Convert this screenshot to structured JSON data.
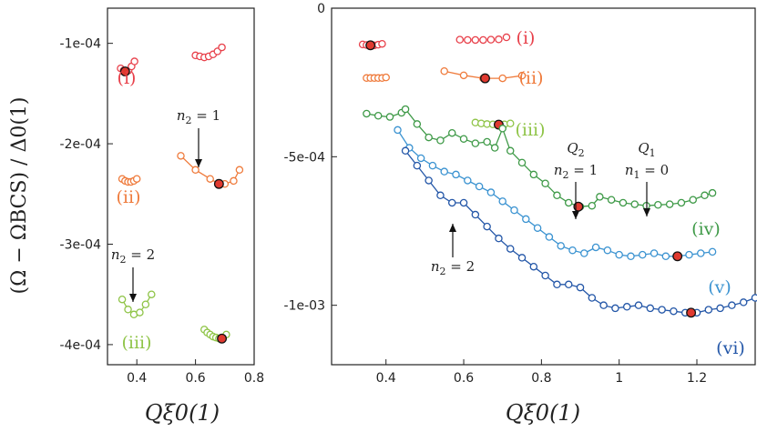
{
  "colors": {
    "i": "#e8414b",
    "ii": "#ef7b3c",
    "iii": "#8fc447",
    "iv": "#3f9a48",
    "v": "#3b93d1",
    "vi": "#2457a8",
    "marker_fill": "#e03a30"
  },
  "chart_data": [
    {
      "type": "scatter",
      "panel": "left",
      "xlabel": "Qξ0(1)",
      "ylabel": "(Ω − ΩBCS) / Δ0(1)",
      "xlim": [
        0.3,
        0.8
      ],
      "ylim": [
        -0.00042,
        -6.5e-05
      ],
      "x_ticks": [
        0.4,
        0.6,
        0.8
      ],
      "x_tick_labels": [
        "0.4",
        "0.6",
        "0.8"
      ],
      "y_ticks": [
        -0.0001,
        -0.0002,
        -0.0003,
        -0.0004
      ],
      "y_tick_labels": [
        "-1e-04",
        "-2e-04",
        "-3e-04",
        "-4e-04"
      ],
      "series": [
        {
          "key": "i",
          "label": "(i)",
          "connected": false,
          "points": [
            [
              0.345,
              -0.000125
            ],
            [
              0.355,
              -0.000127
            ],
            [
              0.362,
              -0.000128
            ],
            [
              0.372,
              -0.000127
            ],
            [
              0.382,
              -0.000123
            ],
            [
              0.392,
              -0.000118
            ],
            [
              0.6,
              -0.000112
            ],
            [
              0.615,
              -0.000113
            ],
            [
              0.63,
              -0.000114
            ],
            [
              0.645,
              -0.000113
            ],
            [
              0.66,
              -0.000111
            ],
            [
              0.675,
              -0.000108
            ],
            [
              0.69,
              -0.000104
            ]
          ],
          "highlight": [
            [
              0.36,
              -0.000128
            ]
          ]
        },
        {
          "key": "ii",
          "label": "(ii)",
          "connected": false,
          "points": [
            [
              0.35,
              -0.000235
            ],
            [
              0.36,
              -0.000237
            ],
            [
              0.37,
              -0.000238
            ],
            [
              0.38,
              -0.000238
            ],
            [
              0.39,
              -0.000237
            ],
            [
              0.4,
              -0.000235
            ]
          ],
          "highlight": []
        },
        {
          "key": "ii",
          "label": "",
          "connected": true,
          "points": [
            [
              0.55,
              -0.000212
            ],
            [
              0.6,
              -0.000226
            ],
            [
              0.65,
              -0.000235
            ],
            [
              0.68,
              -0.00024
            ],
            [
              0.7,
              -0.00024
            ],
            [
              0.73,
              -0.000237
            ],
            [
              0.75,
              -0.000226
            ]
          ],
          "highlight": [
            [
              0.68,
              -0.00024
            ]
          ]
        },
        {
          "key": "iii",
          "label": "(iii)",
          "connected": true,
          "points": [
            [
              0.35,
              -0.000355
            ],
            [
              0.37,
              -0.000365
            ],
            [
              0.39,
              -0.00037
            ],
            [
              0.41,
              -0.000368
            ],
            [
              0.43,
              -0.00036
            ],
            [
              0.45,
              -0.00035
            ]
          ],
          "highlight": []
        },
        {
          "key": "iii",
          "label": "",
          "connected": false,
          "points": [
            [
              0.63,
              -0.000385
            ],
            [
              0.64,
              -0.000388
            ],
            [
              0.65,
              -0.00039
            ],
            [
              0.66,
              -0.000392
            ],
            [
              0.67,
              -0.000393
            ],
            [
              0.68,
              -0.000394
            ],
            [
              0.69,
              -0.000393
            ],
            [
              0.705,
              -0.00039
            ]
          ],
          "highlight": [
            [
              0.69,
              -0.000394
            ]
          ]
        }
      ],
      "annotations": [
        {
          "text_parts": [
            "n",
            "2",
            " = 1"
          ],
          "target": [
            0.68,
            -0.00024
          ]
        },
        {
          "text_parts": [
            "n",
            "2",
            " = 2"
          ],
          "target": [
            0.39,
            -0.00037
          ]
        }
      ]
    },
    {
      "type": "line",
      "panel": "right",
      "xlabel": "Qξ0(1)",
      "xlim": [
        0.26,
        1.35
      ],
      "ylim": [
        -0.0012,
        0
      ],
      "x_ticks": [
        0.4,
        0.6,
        0.8,
        1.0,
        1.2
      ],
      "x_tick_labels": [
        "0.4",
        "0.6",
        "0.8",
        "1",
        "1.2"
      ],
      "y_ticks": [
        0,
        -0.0005,
        -0.001
      ],
      "y_tick_labels": [
        "0",
        "-5e-04",
        "-1e-03"
      ],
      "series": [
        {
          "key": "i",
          "label": "(i)",
          "connected": false,
          "points": [
            [
              0.34,
              -0.000122
            ],
            [
              0.35,
              -0.000124
            ],
            [
              0.36,
              -0.000125
            ],
            [
              0.37,
              -0.000125
            ],
            [
              0.38,
              -0.000123
            ],
            [
              0.39,
              -0.00012
            ],
            [
              0.59,
              -0.000106
            ],
            [
              0.61,
              -0.000107
            ],
            [
              0.63,
              -0.000107
            ],
            [
              0.65,
              -0.000107
            ],
            [
              0.67,
              -0.000106
            ],
            [
              0.69,
              -0.000105
            ],
            [
              0.71,
              -9.8e-05
            ]
          ],
          "highlight": [
            [
              0.36,
              -0.000125
            ]
          ]
        },
        {
          "key": "ii",
          "label": "(ii)",
          "connected": false,
          "points": [
            [
              0.35,
              -0.000235
            ],
            [
              0.36,
              -0.000235
            ],
            [
              0.37,
              -0.000235
            ],
            [
              0.38,
              -0.000235
            ],
            [
              0.39,
              -0.000235
            ],
            [
              0.4,
              -0.000233
            ]
          ],
          "highlight": []
        },
        {
          "key": "ii",
          "label": "",
          "connected": true,
          "points": [
            [
              0.55,
              -0.000212
            ],
            [
              0.6,
              -0.000226
            ],
            [
              0.65,
              -0.000236
            ],
            [
              0.7,
              -0.000236
            ],
            [
              0.75,
              -0.000227
            ]
          ],
          "highlight": [
            [
              0.655,
              -0.000236
            ]
          ]
        },
        {
          "key": "iii",
          "label": "(iii)",
          "connected": false,
          "points": [
            [
              0.63,
              -0.000385
            ],
            [
              0.645,
              -0.000388
            ],
            [
              0.66,
              -0.00039
            ],
            [
              0.675,
              -0.000391
            ],
            [
              0.69,
              -0.000392
            ],
            [
              0.705,
              -0.000391
            ],
            [
              0.72,
              -0.000388
            ]
          ],
          "highlight": [
            [
              0.69,
              -0.000392
            ]
          ]
        },
        {
          "key": "iv",
          "label": "(iv)",
          "connected": true,
          "points": [
            [
              0.35,
              -0.000355
            ],
            [
              0.38,
              -0.000362
            ],
            [
              0.41,
              -0.000366
            ],
            [
              0.44,
              -0.000352
            ],
            [
              0.45,
              -0.00034
            ],
            [
              0.48,
              -0.00039
            ],
            [
              0.51,
              -0.000435
            ],
            [
              0.54,
              -0.000445
            ],
            [
              0.57,
              -0.00042
            ],
            [
              0.6,
              -0.00044
            ],
            [
              0.63,
              -0.000455
            ],
            [
              0.66,
              -0.00045
            ],
            [
              0.68,
              -0.00047
            ],
            [
              0.7,
              -0.000405
            ],
            [
              0.72,
              -0.00048
            ],
            [
              0.75,
              -0.00052
            ],
            [
              0.78,
              -0.00056
            ],
            [
              0.81,
              -0.00059
            ],
            [
              0.84,
              -0.00063
            ],
            [
              0.87,
              -0.000655
            ],
            [
              0.9,
              -0.000668
            ],
            [
              0.93,
              -0.000665
            ],
            [
              0.95,
              -0.000635
            ],
            [
              0.98,
              -0.000645
            ],
            [
              1.01,
              -0.000655
            ],
            [
              1.04,
              -0.00066
            ],
            [
              1.07,
              -0.000665
            ],
            [
              1.1,
              -0.000662
            ],
            [
              1.13,
              -0.00066
            ],
            [
              1.16,
              -0.000655
            ],
            [
              1.19,
              -0.000645
            ],
            [
              1.22,
              -0.00063
            ],
            [
              1.24,
              -0.000622
            ]
          ],
          "highlight": [
            [
              0.895,
              -0.000668
            ]
          ]
        },
        {
          "key": "v",
          "label": "(v)",
          "connected": true,
          "points": [
            [
              0.43,
              -0.00041
            ],
            [
              0.46,
              -0.00047
            ],
            [
              0.49,
              -0.000505
            ],
            [
              0.52,
              -0.00053
            ],
            [
              0.55,
              -0.00055
            ],
            [
              0.58,
              -0.00056
            ],
            [
              0.61,
              -0.00058
            ],
            [
              0.64,
              -0.0006
            ],
            [
              0.67,
              -0.00062
            ],
            [
              0.7,
              -0.00065
            ],
            [
              0.73,
              -0.00068
            ],
            [
              0.76,
              -0.00071
            ],
            [
              0.79,
              -0.00074
            ],
            [
              0.82,
              -0.00077
            ],
            [
              0.85,
              -0.0008
            ],
            [
              0.88,
              -0.000815
            ],
            [
              0.91,
              -0.000825
            ],
            [
              0.94,
              -0.000805
            ],
            [
              0.97,
              -0.000815
            ],
            [
              1.0,
              -0.00083
            ],
            [
              1.03,
              -0.000835
            ],
            [
              1.06,
              -0.00083
            ],
            [
              1.09,
              -0.000825
            ],
            [
              1.12,
              -0.000835
            ],
            [
              1.15,
              -0.000835
            ],
            [
              1.18,
              -0.00083
            ],
            [
              1.21,
              -0.000825
            ],
            [
              1.24,
              -0.00082
            ]
          ],
          "highlight": [
            [
              1.15,
              -0.000835
            ]
          ]
        },
        {
          "key": "vi",
          "label": "(vi)",
          "connected": true,
          "points": [
            [
              0.45,
              -0.00048
            ],
            [
              0.48,
              -0.00053
            ],
            [
              0.51,
              -0.00058
            ],
            [
              0.54,
              -0.00063
            ],
            [
              0.57,
              -0.000655
            ],
            [
              0.6,
              -0.000655
            ],
            [
              0.63,
              -0.000695
            ],
            [
              0.66,
              -0.000735
            ],
            [
              0.69,
              -0.000775
            ],
            [
              0.72,
              -0.00081
            ],
            [
              0.75,
              -0.00084
            ],
            [
              0.78,
              -0.00087
            ],
            [
              0.81,
              -0.0009
            ],
            [
              0.84,
              -0.00093
            ],
            [
              0.87,
              -0.00093
            ],
            [
              0.9,
              -0.00094
            ],
            [
              0.93,
              -0.000975
            ],
            [
              0.96,
              -0.001
            ],
            [
              0.99,
              -0.00101
            ],
            [
              1.02,
              -0.001005
            ],
            [
              1.05,
              -0.001
            ],
            [
              1.08,
              -0.00101
            ],
            [
              1.11,
              -0.001015
            ],
            [
              1.14,
              -0.00102
            ],
            [
              1.17,
              -0.001025
            ],
            [
              1.2,
              -0.001025
            ],
            [
              1.23,
              -0.001015
            ],
            [
              1.26,
              -0.00101
            ],
            [
              1.29,
              -0.001
            ],
            [
              1.32,
              -0.00099
            ],
            [
              1.35,
              -0.000975
            ]
          ],
          "highlight": [
            [
              1.185,
              -0.001025
            ]
          ]
        }
      ],
      "annotations": [
        {
          "text_parts": [
            "Q",
            "2",
            ""
          ],
          "text2_parts": [
            "n",
            "2",
            " = 1"
          ],
          "target": [
            0.895,
            -0.000668
          ]
        },
        {
          "text_parts": [
            "Q",
            "1",
            ""
          ],
          "text2_parts": [
            "n",
            "1",
            " = 0"
          ],
          "target": [
            1.08,
            -0.000665
          ]
        },
        {
          "text_parts": [
            "n",
            "2",
            " = 2"
          ],
          "target": [
            0.58,
            -0.000655
          ]
        }
      ]
    }
  ]
}
